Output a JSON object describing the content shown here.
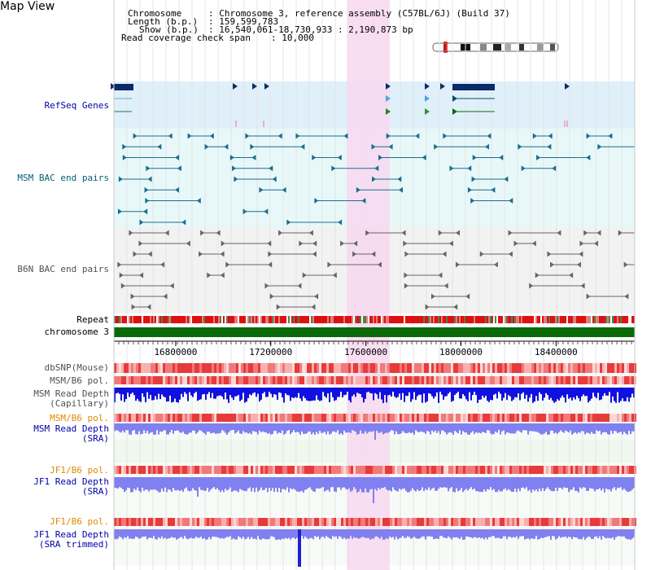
{
  "header": {
    "title": "Map View",
    "chromosome_label": "Chromosome",
    "chromosome_value": ": Chromosome 3, reference assembly (C57BL/6J) (Build 37)",
    "length_label": "Length (b.p.)",
    "length_value": ": 159,599,783",
    "show_label": "Show (b.p.)",
    "show_value": ": 16,540,061-18,730,933 : 2,190,873 bp",
    "coverage_label": "Read coverage check span",
    "coverage_value": ": 10,000"
  },
  "tracks": {
    "refseq": "RefSeq Genes",
    "msm_bac": "MSM BAC end pairs",
    "b6n_bac": "B6N BAC end pairs",
    "repeat": "Repeat",
    "chromosome": "chromosome 3",
    "dbsnp": "dbSNP(Mouse)",
    "msm_b6_pol_1": "MSM/B6 pol.",
    "msm_depth_cap_1": "MSM Read Depth",
    "msm_depth_cap_2": "(Capillary)",
    "msm_b6_pol_2": "MSM/B6 pol.",
    "msm_depth_sra_1": "MSM Read Depth",
    "msm_depth_sra_2": "(SRA)",
    "jf1_b6_pol_1": "JF1/B6 pol.",
    "jf1_depth_sra_1": "JF1 Read Depth",
    "jf1_depth_sra_2": "(SRA)",
    "jf1_b6_pol_2": "JF1/B6 pol.",
    "jf1_depth_trim_1": "JF1 Read Depth",
    "jf1_depth_trim_2": "(SRA trimmed)"
  },
  "axis": {
    "ticks": [
      "16800000",
      "17200000",
      "17600000",
      "18000000",
      "18400000"
    ],
    "tick_values": [
      16800000,
      17200000,
      17600000,
      18000000,
      18400000
    ],
    "range_start": 16540061,
    "range_end": 18730933
  },
  "highlight": {
    "start": 17520000,
    "end": 17700000,
    "color": "#f8d8f0"
  },
  "colors": {
    "refseq": "#0a2a6a",
    "msm_bac": "#1a6e8e",
    "b6n_bac": "#666666",
    "chromosome": "#0a6a0a",
    "depth_cap": "#1010e0",
    "depth_sra": "#8080f0",
    "label_blue": "#0000aa",
    "label_teal": "#006070",
    "label_orange": "#e08a00",
    "label_gray": "#505050"
  }
}
